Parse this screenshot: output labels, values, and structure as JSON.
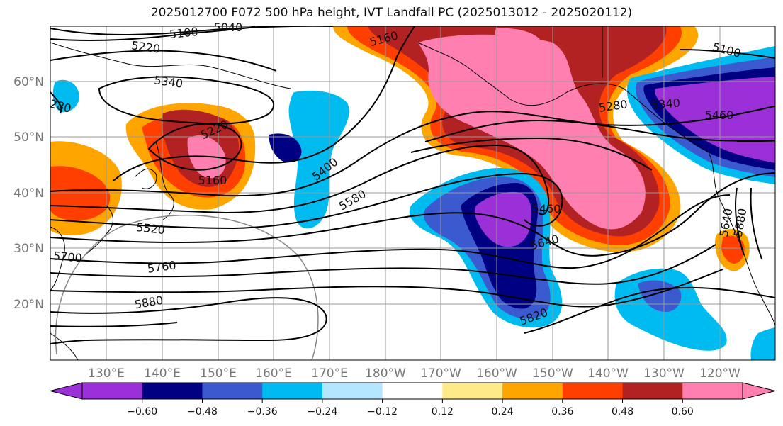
{
  "title": "2025012700 F072 500 hPa height, IVT Landfall PC (2025013012 - 2025020112)",
  "lat_labels": [
    "60°N",
    "50°N",
    "40°N",
    "30°N",
    "20°N"
  ],
  "lon_labels": [
    "130°E",
    "140°E",
    "150°E",
    "160°E",
    "170°E",
    "180°W",
    "170°W",
    "160°W",
    "150°W",
    "140°W",
    "130°W",
    "120°W"
  ],
  "contour_labels": [
    "5040",
    "5100",
    "5220",
    "5340",
    "5160",
    "5220",
    "5160",
    "5400",
    "5580",
    "5520",
    "5700",
    "5760",
    "5880",
    "5100",
    "5280",
    "5340",
    "5460",
    "5460",
    "5640",
    "5820",
    "5640",
    "5880",
    "280"
  ],
  "colorbar": {
    "tick_labels": [
      "−0.60",
      "−0.48",
      "−0.36",
      "−0.24",
      "−0.12",
      "0.12",
      "0.24",
      "0.36",
      "0.48",
      "0.60"
    ],
    "colors": [
      "#9b30d8",
      "#000082",
      "#3c5ad0",
      "#00bbf0",
      "#b4e6ff",
      "#ffffff",
      "#ffea8a",
      "#ffa500",
      "#ff3f00",
      "#b22222",
      "#ff80b0"
    ]
  }
}
